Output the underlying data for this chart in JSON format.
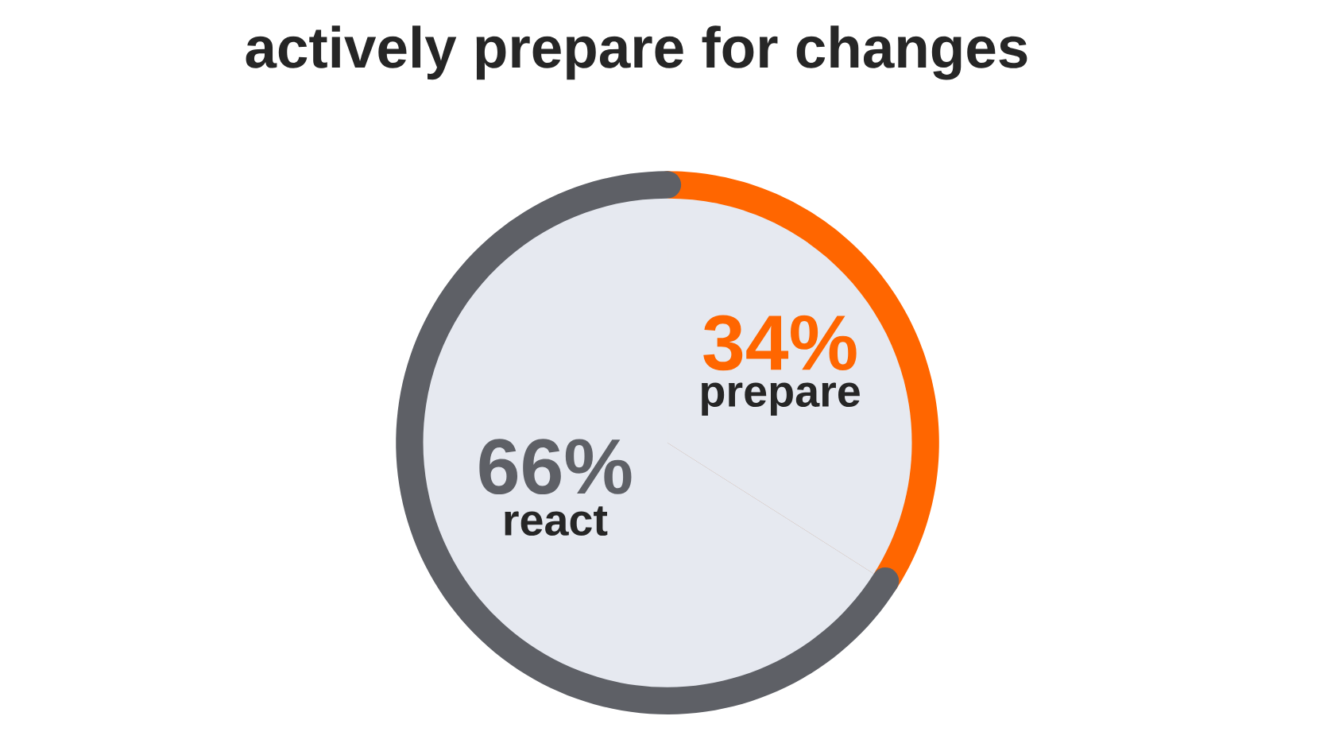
{
  "chart_data": {
    "type": "pie",
    "title": "actively prepare for changes",
    "categories": [
      "prepare",
      "react"
    ],
    "values": [
      34,
      66
    ],
    "colors": [
      "#ff6600",
      "#5e6066"
    ],
    "value_labels": [
      "34%",
      "66%"
    ]
  }
}
